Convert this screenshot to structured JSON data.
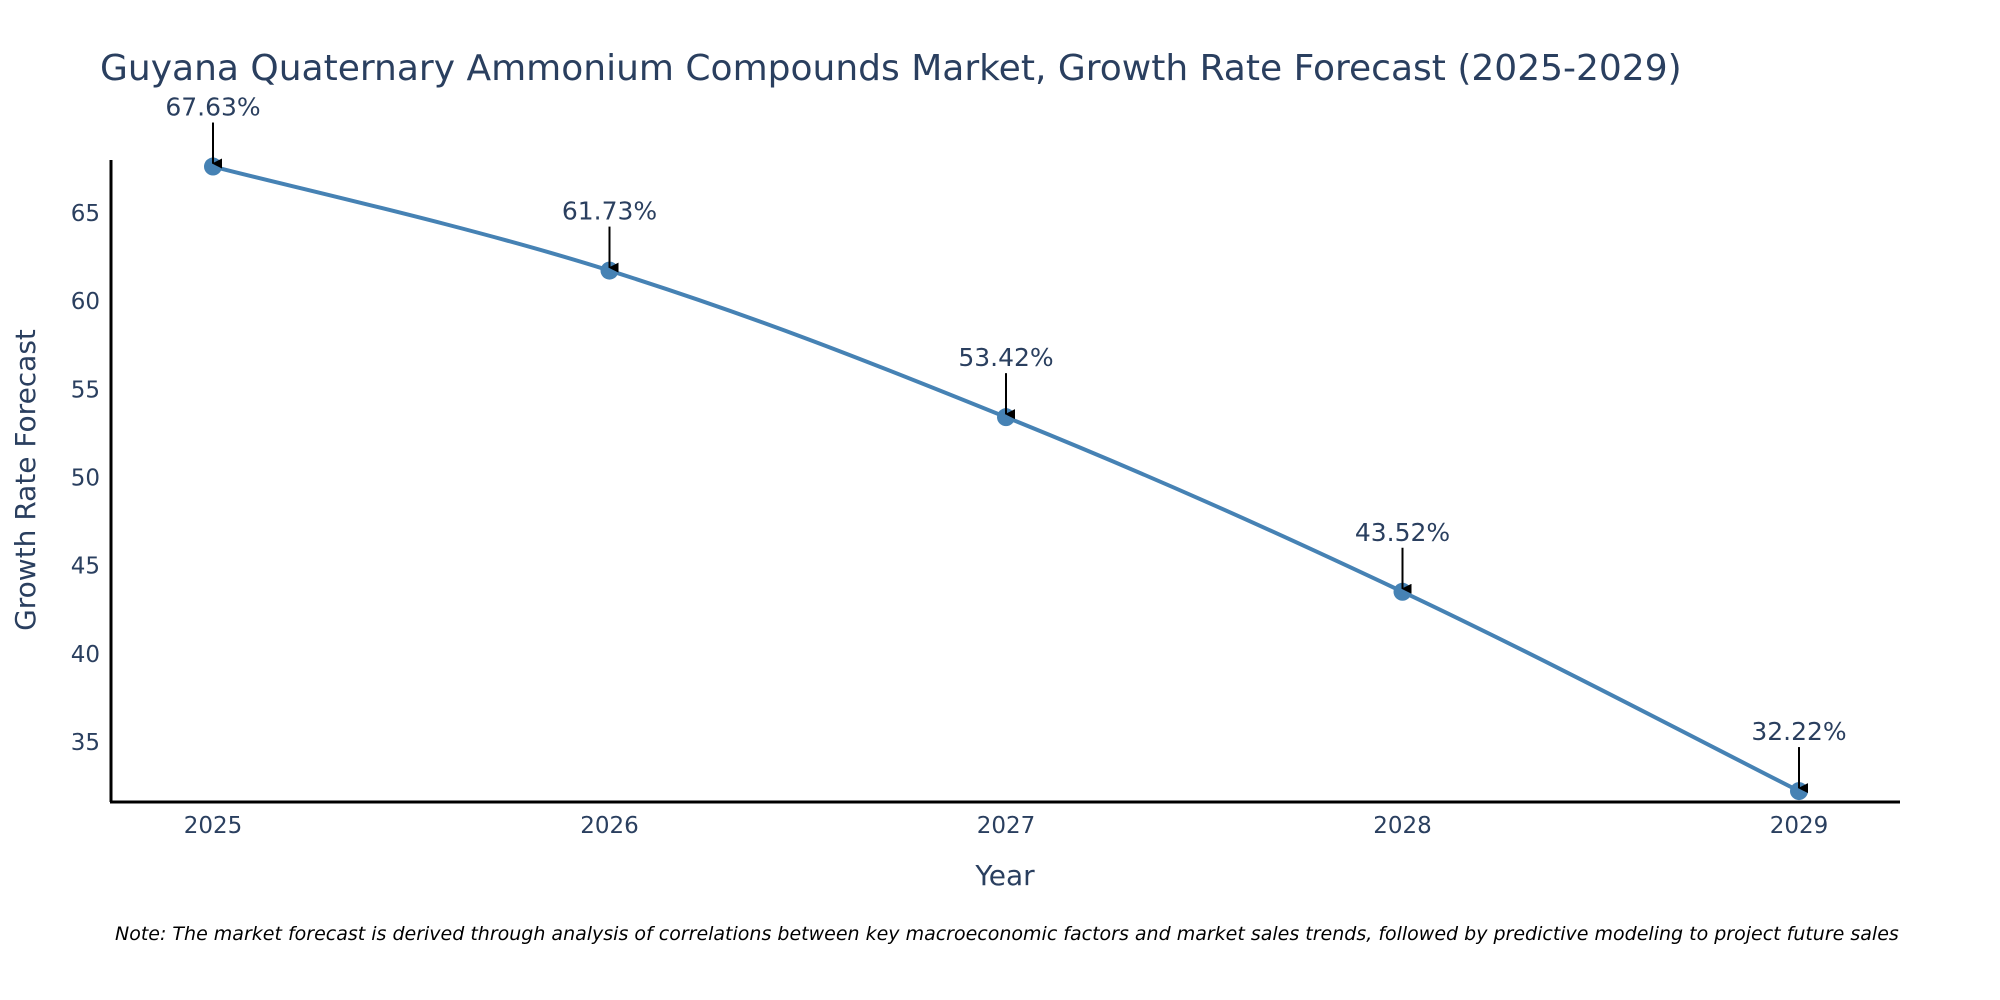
{
  "chart_data": {
    "type": "line",
    "title": "Guyana Quaternary Ammonium Compounds Market, Growth Rate Forecast (2025-2029)",
    "xlabel": "Year",
    "ylabel": "Growth Rate Forecast",
    "categories": [
      "2025",
      "2026",
      "2027",
      "2028",
      "2029"
    ],
    "series": [
      {
        "values": [
          67.63,
          61.73,
          53.42,
          43.52,
          32.22
        ],
        "labels": [
          "67.63%",
          "61.73%",
          "53.42%",
          "43.52%",
          "32.22%"
        ]
      }
    ],
    "ylim": [
      31.6,
      68.0
    ],
    "yticks": [
      35,
      40,
      45,
      50,
      55,
      60,
      65
    ],
    "grid": false,
    "line_shape": "spline",
    "line_color": "#4682b4",
    "marker_color": "#4682b4",
    "annotation_arrow_color": "#000000",
    "note": "Note: The market forecast is derived through analysis of correlations between key macroeconomic factors and market sales trends, followed by predictive modeling to project future sales"
  }
}
